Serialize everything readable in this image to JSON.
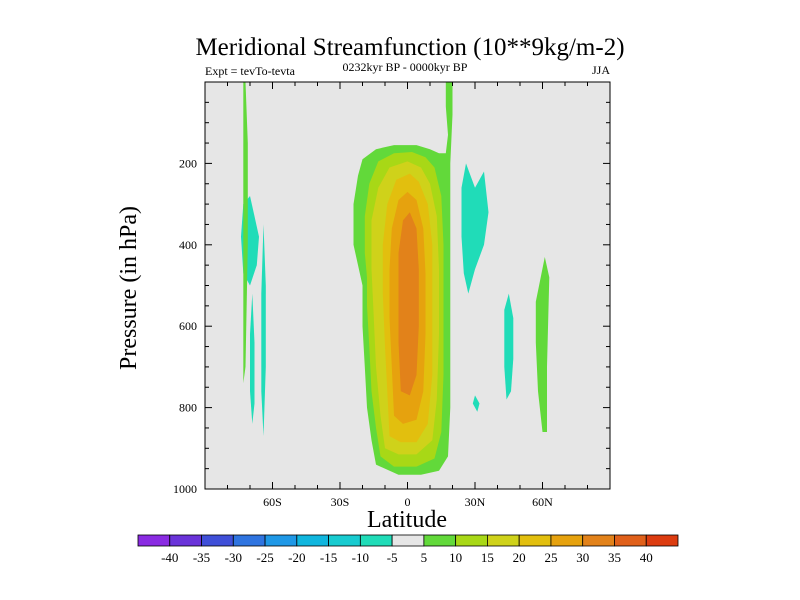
{
  "chart_data": {
    "type": "contour",
    "title": "Meridional Streamfunction (10**9kg/m-2)",
    "subtitle_left": "Expt = tevTo-tevta",
    "subtitle_center": "0232kyr BP - 0000kyr BP",
    "subtitle_right": "JJA",
    "xlabel": "Latitude",
    "ylabel": "Pressure (in hPa)",
    "xlim": [
      -90,
      90
    ],
    "ylim": [
      1000,
      0
    ],
    "x_ticks": [
      {
        "value": -60,
        "label": "60S"
      },
      {
        "value": -30,
        "label": "30S"
      },
      {
        "value": 0,
        "label": "0"
      },
      {
        "value": 30,
        "label": "30N"
      },
      {
        "value": 60,
        "label": "60N"
      }
    ],
    "y_ticks": [
      {
        "value": 200,
        "label": "200"
      },
      {
        "value": 400,
        "label": "400"
      },
      {
        "value": 600,
        "label": "600"
      },
      {
        "value": 800,
        "label": "800"
      },
      {
        "value": 1000,
        "label": "1000"
      }
    ],
    "colorbar": {
      "labels": [
        "-40",
        "-35",
        "-30",
        "-25",
        "-20",
        "-15",
        "-10",
        "-5",
        "5",
        "10",
        "15",
        "20",
        "25",
        "30",
        "35",
        "40"
      ],
      "colors": [
        "#8a2be2",
        "#6a33d9",
        "#3f4fd8",
        "#2f74e0",
        "#1f98e6",
        "#10b6de",
        "#18cbd0",
        "#20dcb8",
        "#e6e6e6",
        "#62d93a",
        "#a8d816",
        "#cfd21a",
        "#e2bf0e",
        "#e6a20e",
        "#e2821a",
        "#e0601a",
        "#dc3c10"
      ]
    },
    "regions": [
      {
        "level": 5,
        "color": "#62d93a",
        "points": [
          [
            -14,
            940
          ],
          [
            -16,
            880
          ],
          [
            -18,
            800
          ],
          [
            -19,
            700
          ],
          [
            -20,
            600
          ],
          [
            -20,
            500
          ],
          [
            -22,
            450
          ],
          [
            -24,
            400
          ],
          [
            -24,
            300
          ],
          [
            -22,
            230
          ],
          [
            -20,
            190
          ],
          [
            -14,
            165
          ],
          [
            -6,
            155
          ],
          [
            4,
            155
          ],
          [
            10,
            165
          ],
          [
            14,
            175
          ],
          [
            17,
            175
          ],
          [
            18,
            130
          ],
          [
            17,
            60
          ],
          [
            17,
            0
          ],
          [
            20,
            0
          ],
          [
            20,
            80
          ],
          [
            19,
            200
          ],
          [
            19,
            400
          ],
          [
            19,
            600
          ],
          [
            19,
            800
          ],
          [
            18,
            920
          ],
          [
            14,
            955
          ],
          [
            6,
            965
          ],
          [
            -4,
            965
          ]
        ]
      },
      {
        "level": 10,
        "color": "#a8d816",
        "points": [
          [
            -12,
            920
          ],
          [
            -14,
            850
          ],
          [
            -16,
            760
          ],
          [
            -17,
            650
          ],
          [
            -18,
            550
          ],
          [
            -18,
            480
          ],
          [
            -19,
            420
          ],
          [
            -19,
            330
          ],
          [
            -17,
            250
          ],
          [
            -13,
            195
          ],
          [
            -6,
            175
          ],
          [
            2,
            172
          ],
          [
            8,
            185
          ],
          [
            12,
            210
          ],
          [
            15,
            280
          ],
          [
            16,
            400
          ],
          [
            16,
            560
          ],
          [
            16,
            720
          ],
          [
            15,
            860
          ],
          [
            12,
            925
          ],
          [
            4,
            945
          ],
          [
            -6,
            945
          ]
        ]
      },
      {
        "level": 15,
        "color": "#cfd21a",
        "points": [
          [
            -10,
            900
          ],
          [
            -12,
            820
          ],
          [
            -14,
            700
          ],
          [
            -15,
            580
          ],
          [
            -16,
            460
          ],
          [
            -16,
            340
          ],
          [
            -13,
            260
          ],
          [
            -8,
            210
          ],
          [
            0,
            195
          ],
          [
            6,
            210
          ],
          [
            10,
            250
          ],
          [
            13,
            330
          ],
          [
            14,
            460
          ],
          [
            14,
            620
          ],
          [
            13,
            780
          ],
          [
            11,
            880
          ],
          [
            4,
            915
          ],
          [
            -4,
            915
          ]
        ]
      },
      {
        "level": 20,
        "color": "#e2bf0e",
        "points": [
          [
            -8,
            870
          ],
          [
            -9,
            760
          ],
          [
            -10,
            650
          ],
          [
            -11,
            520
          ],
          [
            -11,
            400
          ],
          [
            -9,
            300
          ],
          [
            -5,
            240
          ],
          [
            1,
            225
          ],
          [
            5,
            245
          ],
          [
            9,
            300
          ],
          [
            11,
            400
          ],
          [
            11,
            560
          ],
          [
            11,
            720
          ],
          [
            9,
            840
          ],
          [
            4,
            885
          ],
          [
            -3,
            885
          ]
        ]
      },
      {
        "level": 25,
        "color": "#e6a20e",
        "points": [
          [
            -6,
            820
          ],
          [
            -7,
            700
          ],
          [
            -8,
            580
          ],
          [
            -8,
            460
          ],
          [
            -7,
            360
          ],
          [
            -4,
            290
          ],
          [
            0,
            270
          ],
          [
            4,
            290
          ],
          [
            7,
            360
          ],
          [
            8,
            470
          ],
          [
            8,
            620
          ],
          [
            7,
            760
          ],
          [
            4,
            830
          ],
          [
            -2,
            840
          ]
        ]
      },
      {
        "level": 30,
        "color": "#e2821a",
        "points": [
          [
            -3,
            760
          ],
          [
            -4,
            640
          ],
          [
            -4,
            520
          ],
          [
            -4,
            420
          ],
          [
            -2,
            340
          ],
          [
            1,
            320
          ],
          [
            4,
            360
          ],
          [
            5,
            460
          ],
          [
            5,
            600
          ],
          [
            4,
            720
          ],
          [
            1,
            770
          ]
        ]
      },
      {
        "level": -5,
        "color": "#20dcb8",
        "points": [
          [
            -70,
            280
          ],
          [
            -68,
            330
          ],
          [
            -66,
            380
          ],
          [
            -67,
            450
          ],
          [
            -70,
            500
          ],
          [
            -73,
            470
          ],
          [
            -74,
            380
          ],
          [
            -73,
            300
          ]
        ]
      },
      {
        "level": 5,
        "color": "#62d93a",
        "points": [
          [
            -72,
            0
          ],
          [
            -71,
            150
          ],
          [
            -71,
            400
          ],
          [
            -72,
            700
          ],
          [
            -73,
            740
          ],
          [
            -73,
            400
          ],
          [
            -73,
            100
          ],
          [
            -73,
            0
          ]
        ]
      },
      {
        "level": -5,
        "color": "#20dcb8",
        "points": [
          [
            -69,
            520
          ],
          [
            -68,
            640
          ],
          [
            -68,
            790
          ],
          [
            -69,
            840
          ],
          [
            -70,
            760
          ],
          [
            -70,
            620
          ]
        ]
      },
      {
        "level": -5,
        "color": "#20dcb8",
        "points": [
          [
            -64,
            350
          ],
          [
            -63,
            500
          ],
          [
            -63,
            700
          ],
          [
            -64,
            870
          ],
          [
            -65,
            760
          ],
          [
            -65,
            520
          ]
        ]
      },
      {
        "level": -5,
        "color": "#20dcb8",
        "points": [
          [
            24,
            260
          ],
          [
            26,
            200
          ],
          [
            30,
            260
          ],
          [
            34,
            220
          ],
          [
            36,
            320
          ],
          [
            34,
            400
          ],
          [
            30,
            460
          ],
          [
            27,
            520
          ],
          [
            25,
            470
          ],
          [
            24,
            380
          ]
        ]
      },
      {
        "level": -5,
        "color": "#20dcb8",
        "points": [
          [
            43,
            560
          ],
          [
            45,
            520
          ],
          [
            47,
            580
          ],
          [
            47,
            680
          ],
          [
            46,
            760
          ],
          [
            44,
            780
          ],
          [
            43,
            700
          ]
        ]
      },
      {
        "level": -5,
        "color": "#20dcb8",
        "points": [
          [
            30,
            770
          ],
          [
            32,
            790
          ],
          [
            31,
            810
          ],
          [
            29,
            790
          ]
        ]
      },
      {
        "level": 5,
        "color": "#62d93a",
        "points": [
          [
            57,
            540
          ],
          [
            61,
            430
          ],
          [
            63,
            480
          ],
          [
            62,
            700
          ],
          [
            62,
            860
          ],
          [
            60,
            860
          ],
          [
            58,
            760
          ],
          [
            57,
            640
          ]
        ]
      }
    ]
  }
}
